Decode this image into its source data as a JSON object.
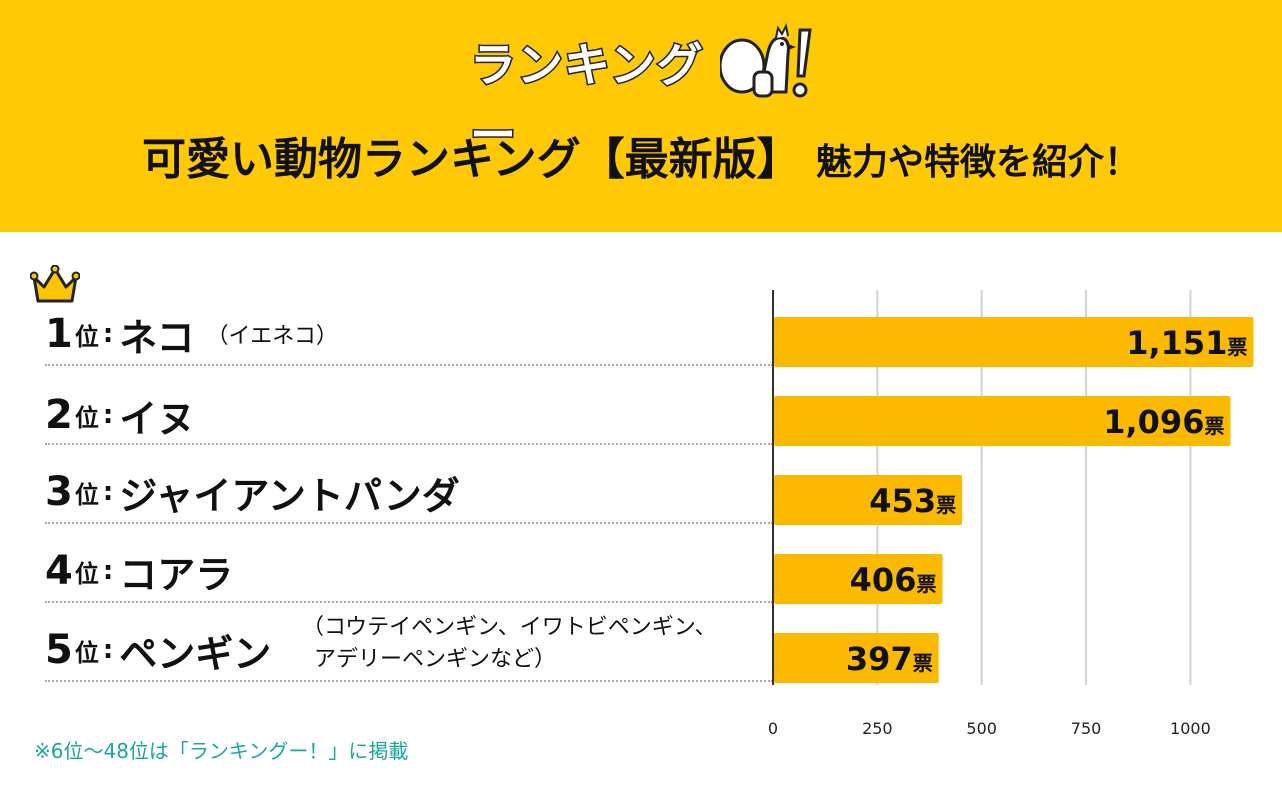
{
  "header": {
    "logo_text": "ランキングー",
    "title_main": "可愛い動物ランキング【最新版】",
    "title_sub": "魅力や特徴を紹介！"
  },
  "ranking": [
    {
      "rank": "1",
      "suffix": "位",
      "colon": ":",
      "name": "ネコ",
      "note": "（イエネコ）"
    },
    {
      "rank": "2",
      "suffix": "位",
      "colon": ":",
      "name": "イヌ",
      "note": ""
    },
    {
      "rank": "3",
      "suffix": "位",
      "colon": ":",
      "name": "ジャイアントパンダ",
      "note": ""
    },
    {
      "rank": "4",
      "suffix": "位",
      "colon": ":",
      "name": "コアラ",
      "note": ""
    },
    {
      "rank": "5",
      "suffix": "位",
      "colon": ":",
      "name": "ペンギン",
      "note_line1": "（コウテイペンギン、イワトビペンギン、",
      "note_line2": "アデリーペンギンなど）"
    }
  ],
  "chart_data": {
    "type": "bar",
    "orientation": "horizontal",
    "categories": [
      "ネコ",
      "イヌ",
      "ジャイアントパンダ",
      "コアラ",
      "ペンギン"
    ],
    "values": [
      1151,
      1096,
      453,
      406,
      397
    ],
    "value_labels": [
      "1,151",
      "1,096",
      "453",
      "406",
      "397"
    ],
    "unit": "票",
    "xlim": [
      0,
      1150
    ],
    "xticks": [
      0,
      250,
      500,
      750,
      1000
    ],
    "grid": true,
    "bar_color": "#fbb900"
  },
  "footnote": "※6位〜48位は「ランキングー！」に掲載",
  "colors": {
    "header_bg": "#ffca05",
    "bar": "#fbb900",
    "footnote": "#1aa79d",
    "crown": "#ffc400"
  },
  "icons": {
    "crown": "crown-icon",
    "mascot": "chicken-mascot-icon"
  }
}
